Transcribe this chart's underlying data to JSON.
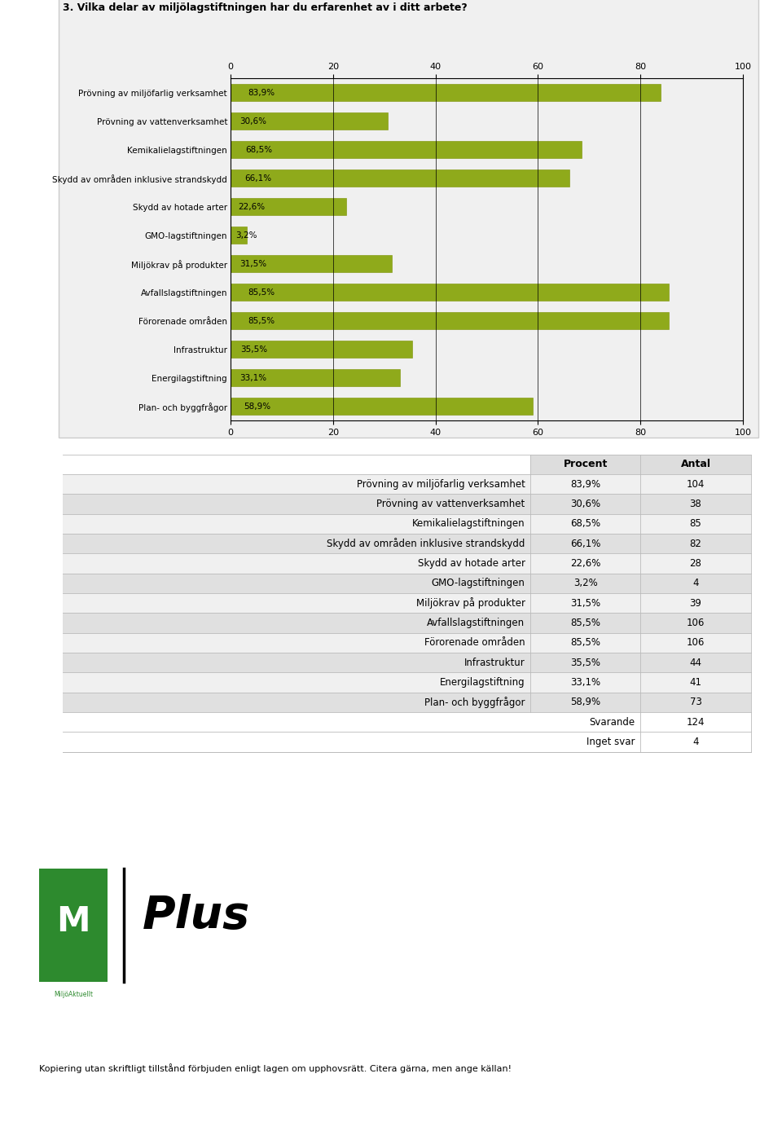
{
  "title": "3. Vilka delar av miljölagstiftningen har du erfarenhet av i ditt arbete?",
  "categories": [
    "Prövning av miljöfarlig verksamhet",
    "Prövning av vattenverksamhet",
    "Kemikalielagstiftningen",
    "Skydd av områden inklusive strandskydd",
    "Skydd av hotade arter",
    "GMO-lagstiftningen",
    "Miljökrav på produkter",
    "Avfallslagstiftningen",
    "Förorenade områden",
    "Infrastruktur",
    "Energilagstiftning",
    "Plan- och byggfrågor"
  ],
  "values": [
    83.9,
    30.6,
    68.5,
    66.1,
    22.6,
    3.2,
    31.5,
    85.5,
    85.5,
    35.5,
    33.1,
    58.9
  ],
  "labels": [
    "83,9%",
    "30,6%",
    "68,5%",
    "66,1%",
    "22,6%",
    "3,2%",
    "31,5%",
    "85,5%",
    "85,5%",
    "35,5%",
    "33,1%",
    "58,9%"
  ],
  "bar_color": "#8faa1b",
  "bar_edge_color": "#7a9200",
  "background_color": "#f0f0f0",
  "chart_bg_color": "#f0f0f0",
  "plot_bg_color": "#f0f0f0",
  "xlim": [
    0,
    100
  ],
  "xticks": [
    0,
    20,
    40,
    60,
    80,
    100
  ],
  "table_rows": [
    [
      "Prövning av miljöfarlig verksamhet",
      "83,9%",
      "104"
    ],
    [
      "Prövning av vattenverksamhet",
      "30,6%",
      "38"
    ],
    [
      "Kemikalielagstiftningen",
      "68,5%",
      "85"
    ],
    [
      "Skydd av områden inklusive strandskydd",
      "66,1%",
      "82"
    ],
    [
      "Skydd av hotade arter",
      "22,6%",
      "28"
    ],
    [
      "GMO-lagstiftningen",
      "3,2%",
      "4"
    ],
    [
      "Miljökrav på produkter",
      "31,5%",
      "39"
    ],
    [
      "Avfallslagstiftningen",
      "85,5%",
      "106"
    ],
    [
      "Förorenade områden",
      "85,5%",
      "106"
    ],
    [
      "Infrastruktur",
      "35,5%",
      "44"
    ],
    [
      "Energilagstiftning",
      "33,1%",
      "41"
    ],
    [
      "Plan- och byggfrågor",
      "58,9%",
      "73"
    ]
  ],
  "table_footer": [
    [
      "Svarande",
      "124"
    ],
    [
      "Inget svar",
      "4"
    ]
  ],
  "col_headers": [
    "Procent",
    "Antal"
  ],
  "footer_text": "Kopiering utan skriftligt tillstånd förbjuden enligt lagen om upphovsrätt. Citera gärna, men ange källan!",
  "chart_box_color": "#cccccc",
  "table_border_color": "#bbbbbb",
  "table_header_bg": "#dddddd",
  "table_row_bg_even": "#f0f0f0",
  "table_row_bg_odd": "#e0e0e0"
}
